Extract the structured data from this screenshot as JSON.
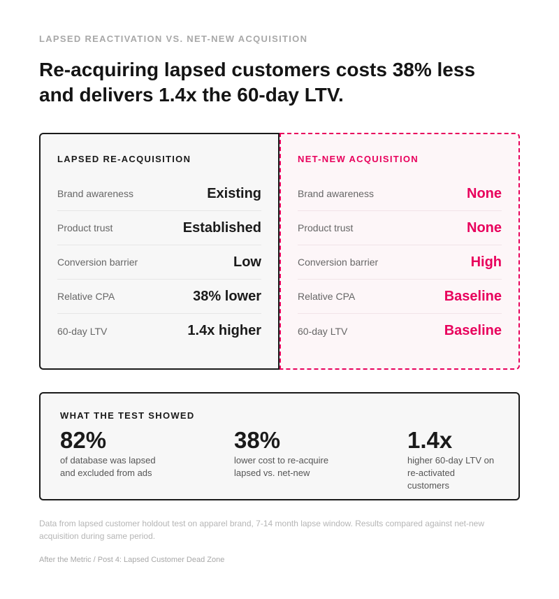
{
  "eyebrow": "LAPSED REACTIVATION VS. NET-NEW ACQUISITION",
  "headline": "Re-acquiring lapsed customers costs 38% less and delivers 1.4x the 60-day LTV.",
  "colors": {
    "accent": "#e8005c",
    "ink": "#1a1a1a",
    "muted": "#666666",
    "panel_bg": "#f7f7f7",
    "accent_panel_bg": "#fdf6f8"
  },
  "comparison": {
    "lapsed": {
      "title": "LAPSED RE-ACQUISITION",
      "rows": [
        {
          "label": "Brand awareness",
          "value": "Existing"
        },
        {
          "label": "Product trust",
          "value": "Established"
        },
        {
          "label": "Conversion barrier",
          "value": "Low"
        },
        {
          "label": "Relative CPA",
          "value": "38% lower"
        },
        {
          "label": "60-day LTV",
          "value": "1.4x higher"
        }
      ]
    },
    "netnew": {
      "title": "NET-NEW ACQUISITION",
      "rows": [
        {
          "label": "Brand awareness",
          "value": "None"
        },
        {
          "label": "Product trust",
          "value": "None"
        },
        {
          "label": "Conversion barrier",
          "value": "High"
        },
        {
          "label": "Relative CPA",
          "value": "Baseline"
        },
        {
          "label": "60-day LTV",
          "value": "Baseline"
        }
      ]
    }
  },
  "results": {
    "title": "WHAT THE TEST SHOWED",
    "stats": [
      {
        "value": "82%",
        "description": "of database was lapsed\nand excluded from ads"
      },
      {
        "value": "38%",
        "description": "lower cost to re-acquire\nlapsed vs. net-new"
      },
      {
        "value": "1.4x",
        "description": "higher 60-day LTV on\nre-activated customers"
      }
    ]
  },
  "footnote": "Data from lapsed customer holdout test on apparel brand, 7-14 month lapse window. Results compared against net-new acquisition during same period.",
  "credit": "After the Metric / Post 4: Lapsed Customer Dead Zone"
}
